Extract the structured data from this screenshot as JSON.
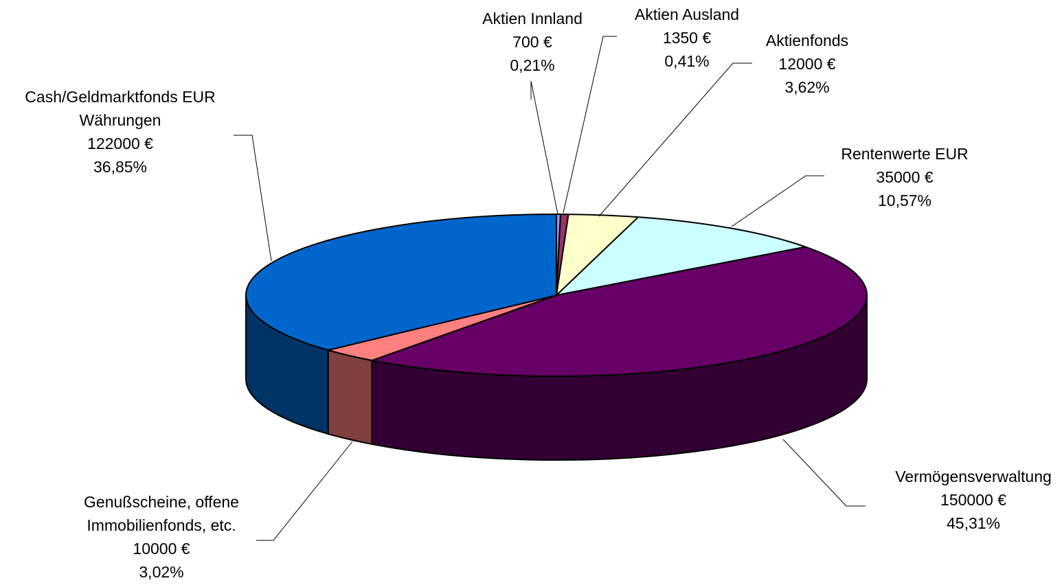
{
  "chart_data": {
    "type": "pie",
    "title": "",
    "slices": [
      {
        "name": "Aktien Innland",
        "value": 700,
        "value_label": "700 €",
        "percent_label": "0,21%",
        "color": "#9999FF",
        "side_color": "#4D4D80"
      },
      {
        "name": "Aktien Ausland",
        "value": 1350,
        "value_label": "1350 €",
        "percent_label": "0,41%",
        "color": "#993366",
        "side_color": "#4D1A33"
      },
      {
        "name": "Aktienfonds",
        "value": 12000,
        "value_label": "12000 €",
        "percent_label": "3,62%",
        "color": "#FFFFCC",
        "side_color": "#808066"
      },
      {
        "name": "Rentenwerte EUR",
        "value": 35000,
        "value_label": "35000 €",
        "percent_label": "10,57%",
        "color": "#CCFFFF",
        "side_color": "#668080"
      },
      {
        "name": "Vermögensverwaltung",
        "value": 150000,
        "value_label": "150000 €",
        "percent_label": "45,31%",
        "color": "#660066",
        "side_color": "#330033"
      },
      {
        "name": "Genußscheine, offene Immobilienfonds, etc.",
        "value": 10000,
        "value_label": "10000 €",
        "percent_label": "3,02%",
        "color": "#FF8080",
        "side_color": "#804040"
      },
      {
        "name": "Cash/Geldmarktfonds EUR Währungen",
        "value": 122000,
        "value_label": "122000 €",
        "percent_label": "36,85%",
        "color": "#0066CC",
        "side_color": "#003366"
      }
    ],
    "label_lines": [
      [
        "Aktien Innland",
        "700 €",
        "0,21%"
      ],
      [
        "Aktien Ausland",
        "1350 €",
        "0,41%"
      ],
      [
        "Aktienfonds",
        "12000 €",
        "3,62%"
      ],
      [
        "Rentenwerte EUR",
        "35000 €",
        "10,57%"
      ],
      [
        "Vermögensverwaltung",
        "150000 €",
        "45,31%"
      ],
      [
        "Genußscheine, offene",
        "Immobilienfonds, etc.",
        "10000 €",
        "3,02%"
      ],
      [
        "Cash/Geldmarktfonds EUR",
        "Währungen",
        "122000 €",
        "36,85%"
      ]
    ],
    "start_angle_deg": 90,
    "direction": "clockwise",
    "style": "3d-pie",
    "legend": "none"
  }
}
